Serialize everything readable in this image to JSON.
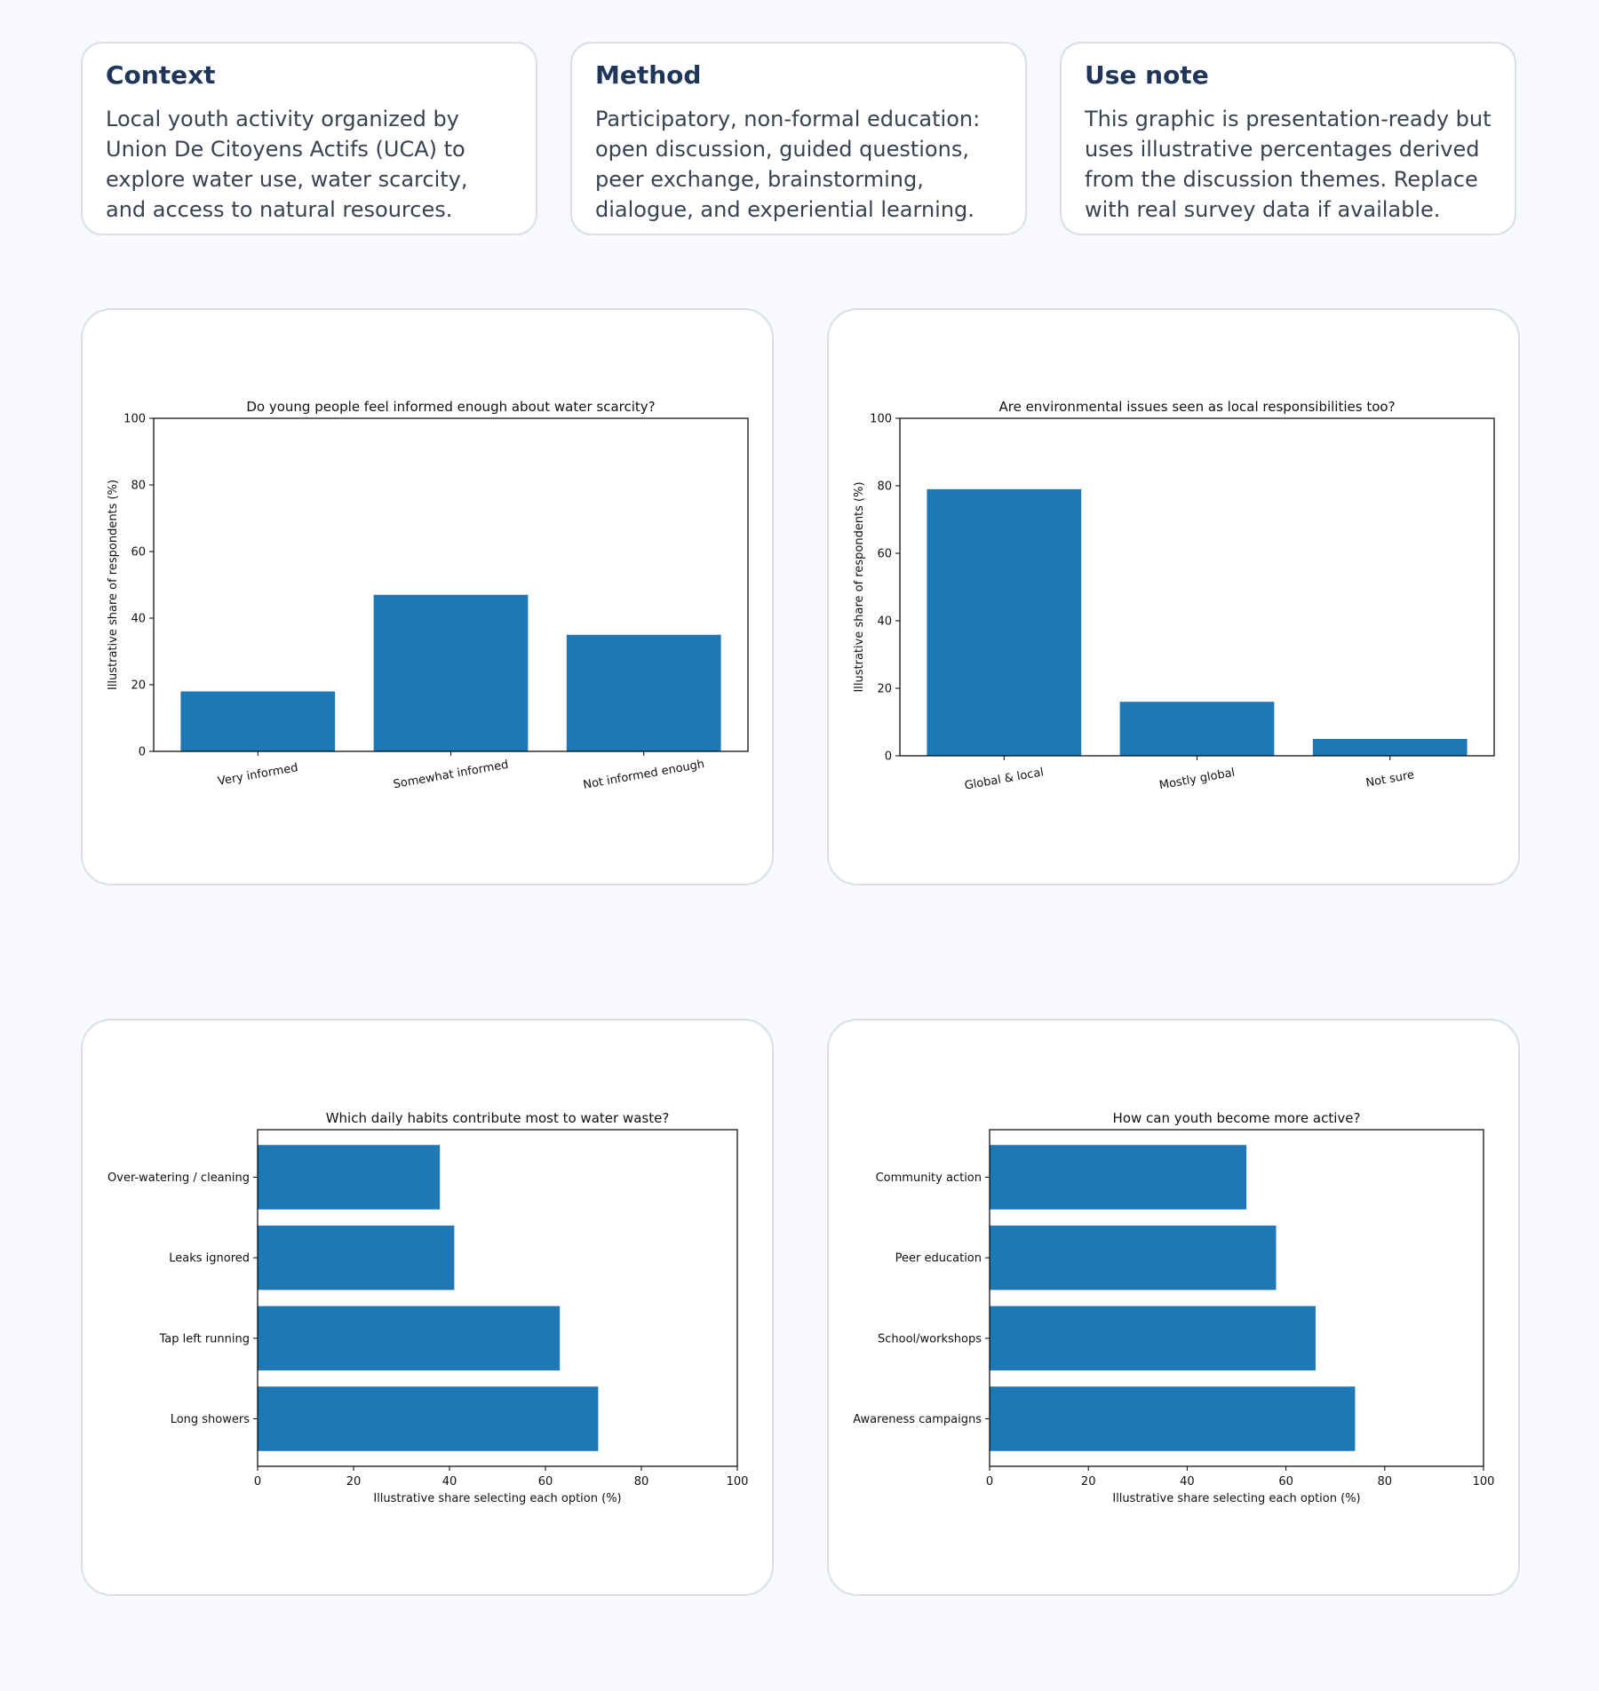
{
  "cards": {
    "context": {
      "title": "Context",
      "text": "Local youth activity organized by Union De Citoyens Actifs (UCA) to explore water use, water scarcity, and access to natural resources."
    },
    "method": {
      "title": "Method",
      "text": "Participatory, non-formal education: open discussion, guided questions, peer exchange, brainstorming, dialogue, and experiential learning."
    },
    "use_note": {
      "title": "Use note",
      "text": "This graphic is presentation-ready but uses illustrative percentages derived from the discussion themes. Replace with real survey data if available."
    }
  },
  "colors": {
    "bar": "#1f77b4",
    "card_title": "#1f365a",
    "card_text": "#3a4252"
  },
  "chart_data": [
    {
      "type": "bar",
      "title": "Do young people feel informed enough about water scarcity?",
      "categories": [
        "Very informed",
        "Somewhat informed",
        "Not informed enough"
      ],
      "values": [
        18,
        47,
        35
      ],
      "xlabel": "",
      "ylabel": "Illustrative share of respondents (%)",
      "ylim": [
        0,
        100
      ],
      "yticks": [
        0,
        20,
        40,
        60,
        80,
        100
      ],
      "tick_labels": [
        "0",
        "20",
        "40",
        "60",
        "80",
        "100"
      ],
      "grid": false
    },
    {
      "type": "bar",
      "title": "Are environmental issues seen as local responsibilities too?",
      "categories": [
        "Global & local",
        "Mostly global",
        "Not sure"
      ],
      "values": [
        79,
        16,
        5
      ],
      "xlabel": "",
      "ylabel": "Illustrative share of respondents (%)",
      "ylim": [
        0,
        100
      ],
      "yticks": [
        0,
        20,
        40,
        60,
        80,
        100
      ],
      "tick_labels": [
        "0",
        "20",
        "40",
        "60",
        "80",
        "100"
      ],
      "grid": false
    },
    {
      "type": "barh",
      "title": "Which daily habits contribute most to water waste?",
      "categories": [
        "Long showers",
        "Tap left running",
        "Leaks ignored",
        "Over-watering / cleaning"
      ],
      "values": [
        71,
        63,
        41,
        38
      ],
      "xlabel": "Illustrative share selecting each option (%)",
      "ylabel": "",
      "xlim": [
        0,
        100
      ],
      "xticks": [
        0,
        20,
        40,
        60,
        80,
        100
      ],
      "tick_labels": [
        "0",
        "20",
        "40",
        "60",
        "80",
        "100"
      ],
      "grid": false
    },
    {
      "type": "barh",
      "title": "How can youth become more active?",
      "categories": [
        "Awareness campaigns",
        "School/workshops",
        "Peer education",
        "Community action"
      ],
      "values": [
        74,
        66,
        58,
        52
      ],
      "xlabel": "Illustrative share selecting each option (%)",
      "ylabel": "",
      "xlim": [
        0,
        100
      ],
      "xticks": [
        0,
        20,
        40,
        60,
        80,
        100
      ],
      "tick_labels": [
        "0",
        "20",
        "40",
        "60",
        "80",
        "100"
      ],
      "grid": false
    }
  ]
}
